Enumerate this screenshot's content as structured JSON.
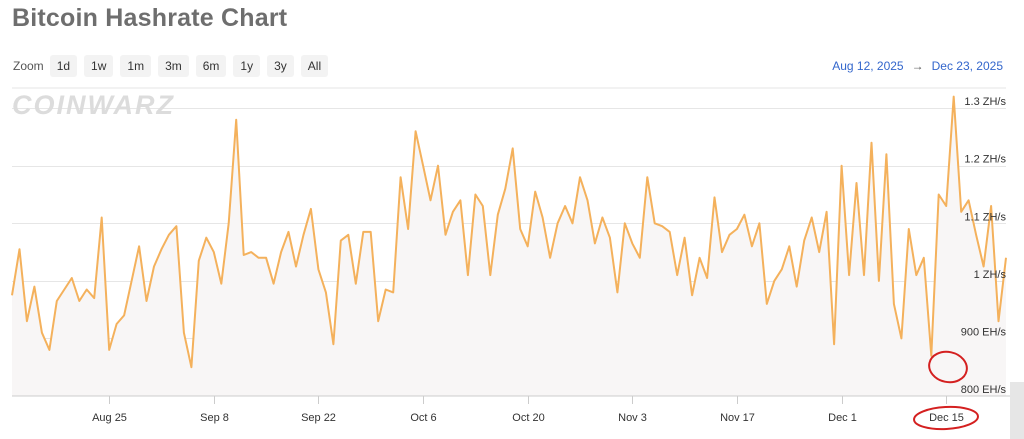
{
  "title": "Bitcoin Hashrate Chart",
  "zoom": {
    "label": "Zoom",
    "buttons": [
      "1d",
      "1w",
      "1m",
      "3m",
      "6m",
      "1y",
      "3y",
      "All"
    ]
  },
  "range": {
    "from": "Aug 12, 2025",
    "arrow": "→",
    "to": "Dec 23, 2025"
  },
  "watermark": "COINWARZ",
  "colors": {
    "line": "#f4b15c",
    "area": "#f8f6f6",
    "annotation": "#d42020",
    "range": "#3366cc"
  },
  "chart_data": {
    "type": "line",
    "title": "Bitcoin Hashrate Chart",
    "xlabel": "",
    "ylabel": "",
    "x_start": "2025-08-12",
    "x_end": "2025-12-23",
    "ylim": [
      800,
      1335
    ],
    "y_unit": "EH/s",
    "y_ticks": [
      {
        "value": 800,
        "label": "800 EH/s"
      },
      {
        "value": 900,
        "label": "900 EH/s"
      },
      {
        "value": 1000,
        "label": "1 ZH/s"
      },
      {
        "value": 1100,
        "label": "1.1 ZH/s"
      },
      {
        "value": 1200,
        "label": "1.2 ZH/s"
      },
      {
        "value": 1300,
        "label": "1.3 ZH/s"
      }
    ],
    "x_ticks": [
      {
        "date": "2025-08-25",
        "label": "Aug 25"
      },
      {
        "date": "2025-09-08",
        "label": "Sep 8"
      },
      {
        "date": "2025-09-22",
        "label": "Sep 22"
      },
      {
        "date": "2025-10-06",
        "label": "Oct 6"
      },
      {
        "date": "2025-10-20",
        "label": "Oct 20"
      },
      {
        "date": "2025-11-03",
        "label": "Nov 3"
      },
      {
        "date": "2025-11-17",
        "label": "Nov 17"
      },
      {
        "date": "2025-12-01",
        "label": "Dec 1"
      },
      {
        "date": "2025-12-15",
        "label": "Dec 15"
      }
    ],
    "grid": true,
    "series": [
      {
        "values": [
          [
            "2025-08-12",
            975
          ],
          [
            "2025-08-13",
            1055
          ],
          [
            "2025-08-14",
            930
          ],
          [
            "2025-08-15",
            990
          ],
          [
            "2025-08-16",
            910
          ],
          [
            "2025-08-17",
            880
          ],
          [
            "2025-08-18",
            965
          ],
          [
            "2025-08-19",
            985
          ],
          [
            "2025-08-20",
            1005
          ],
          [
            "2025-08-21",
            965
          ],
          [
            "2025-08-22",
            985
          ],
          [
            "2025-08-23",
            970
          ],
          [
            "2025-08-24",
            1110
          ],
          [
            "2025-08-25",
            880
          ],
          [
            "2025-08-26",
            925
          ],
          [
            "2025-08-27",
            940
          ],
          [
            "2025-08-28",
            1000
          ],
          [
            "2025-08-29",
            1060
          ],
          [
            "2025-08-30",
            965
          ],
          [
            "2025-08-31",
            1025
          ],
          [
            "2025-09-01",
            1055
          ],
          [
            "2025-09-02",
            1080
          ],
          [
            "2025-09-03",
            1095
          ],
          [
            "2025-09-04",
            910
          ],
          [
            "2025-09-05",
            850
          ],
          [
            "2025-09-06",
            1035
          ],
          [
            "2025-09-07",
            1075
          ],
          [
            "2025-09-08",
            1050
          ],
          [
            "2025-09-09",
            995
          ],
          [
            "2025-09-10",
            1100
          ],
          [
            "2025-09-11",
            1280
          ],
          [
            "2025-09-12",
            1045
          ],
          [
            "2025-09-13",
            1050
          ],
          [
            "2025-09-14",
            1040
          ],
          [
            "2025-09-15",
            1040
          ],
          [
            "2025-09-16",
            995
          ],
          [
            "2025-09-17",
            1050
          ],
          [
            "2025-09-18",
            1085
          ],
          [
            "2025-09-19",
            1025
          ],
          [
            "2025-09-20",
            1080
          ],
          [
            "2025-09-21",
            1125
          ],
          [
            "2025-09-22",
            1020
          ],
          [
            "2025-09-23",
            980
          ],
          [
            "2025-09-24",
            890
          ],
          [
            "2025-09-25",
            1070
          ],
          [
            "2025-09-26",
            1080
          ],
          [
            "2025-09-27",
            995
          ],
          [
            "2025-09-28",
            1085
          ],
          [
            "2025-09-29",
            1085
          ],
          [
            "2025-09-30",
            930
          ],
          [
            "2025-10-01",
            985
          ],
          [
            "2025-10-02",
            980
          ],
          [
            "2025-10-03",
            1180
          ],
          [
            "2025-10-04",
            1090
          ],
          [
            "2025-10-05",
            1260
          ],
          [
            "2025-10-06",
            1200
          ],
          [
            "2025-10-07",
            1140
          ],
          [
            "2025-10-08",
            1200
          ],
          [
            "2025-10-09",
            1080
          ],
          [
            "2025-10-10",
            1120
          ],
          [
            "2025-10-11",
            1140
          ],
          [
            "2025-10-12",
            1010
          ],
          [
            "2025-10-13",
            1150
          ],
          [
            "2025-10-14",
            1130
          ],
          [
            "2025-10-15",
            1010
          ],
          [
            "2025-10-16",
            1115
          ],
          [
            "2025-10-17",
            1160
          ],
          [
            "2025-10-18",
            1230
          ],
          [
            "2025-10-19",
            1090
          ],
          [
            "2025-10-20",
            1060
          ],
          [
            "2025-10-21",
            1155
          ],
          [
            "2025-10-22",
            1110
          ],
          [
            "2025-10-23",
            1040
          ],
          [
            "2025-10-24",
            1100
          ],
          [
            "2025-10-25",
            1130
          ],
          [
            "2025-10-26",
            1100
          ],
          [
            "2025-10-27",
            1180
          ],
          [
            "2025-10-28",
            1140
          ],
          [
            "2025-10-29",
            1065
          ],
          [
            "2025-10-30",
            1110
          ],
          [
            "2025-10-31",
            1075
          ],
          [
            "2025-11-01",
            980
          ],
          [
            "2025-11-02",
            1100
          ],
          [
            "2025-11-03",
            1065
          ],
          [
            "2025-11-04",
            1040
          ],
          [
            "2025-11-05",
            1180
          ],
          [
            "2025-11-06",
            1100
          ],
          [
            "2025-11-07",
            1095
          ],
          [
            "2025-11-08",
            1085
          ],
          [
            "2025-11-09",
            1010
          ],
          [
            "2025-11-10",
            1075
          ],
          [
            "2025-11-11",
            975
          ],
          [
            "2025-11-12",
            1040
          ],
          [
            "2025-11-13",
            1005
          ],
          [
            "2025-11-14",
            1145
          ],
          [
            "2025-11-15",
            1050
          ],
          [
            "2025-11-16",
            1080
          ],
          [
            "2025-11-17",
            1090
          ],
          [
            "2025-11-18",
            1115
          ],
          [
            "2025-11-19",
            1060
          ],
          [
            "2025-11-20",
            1100
          ],
          [
            "2025-11-21",
            960
          ],
          [
            "2025-11-22",
            1000
          ],
          [
            "2025-11-23",
            1020
          ],
          [
            "2025-11-24",
            1060
          ],
          [
            "2025-11-25",
            990
          ],
          [
            "2025-11-26",
            1070
          ],
          [
            "2025-11-27",
            1110
          ],
          [
            "2025-11-28",
            1050
          ],
          [
            "2025-11-29",
            1120
          ],
          [
            "2025-11-30",
            890
          ],
          [
            "2025-12-01",
            1200
          ],
          [
            "2025-12-02",
            1010
          ],
          [
            "2025-12-03",
            1170
          ],
          [
            "2025-12-04",
            1010
          ],
          [
            "2025-12-05",
            1240
          ],
          [
            "2025-12-06",
            1000
          ],
          [
            "2025-12-07",
            1220
          ],
          [
            "2025-12-08",
            960
          ],
          [
            "2025-12-09",
            900
          ],
          [
            "2025-12-10",
            1090
          ],
          [
            "2025-12-11",
            1010
          ],
          [
            "2025-12-12",
            1040
          ],
          [
            "2025-12-13",
            870
          ],
          [
            "2025-12-14",
            1150
          ],
          [
            "2025-12-15",
            1130
          ],
          [
            "2025-12-16",
            1320
          ],
          [
            "2025-12-17",
            1120
          ],
          [
            "2025-12-18",
            1140
          ],
          [
            "2025-12-19",
            1080
          ],
          [
            "2025-12-20",
            1025
          ],
          [
            "2025-12-21",
            1130
          ],
          [
            "2025-12-22",
            930
          ],
          [
            "2025-12-23",
            1040
          ]
        ]
      }
    ]
  }
}
